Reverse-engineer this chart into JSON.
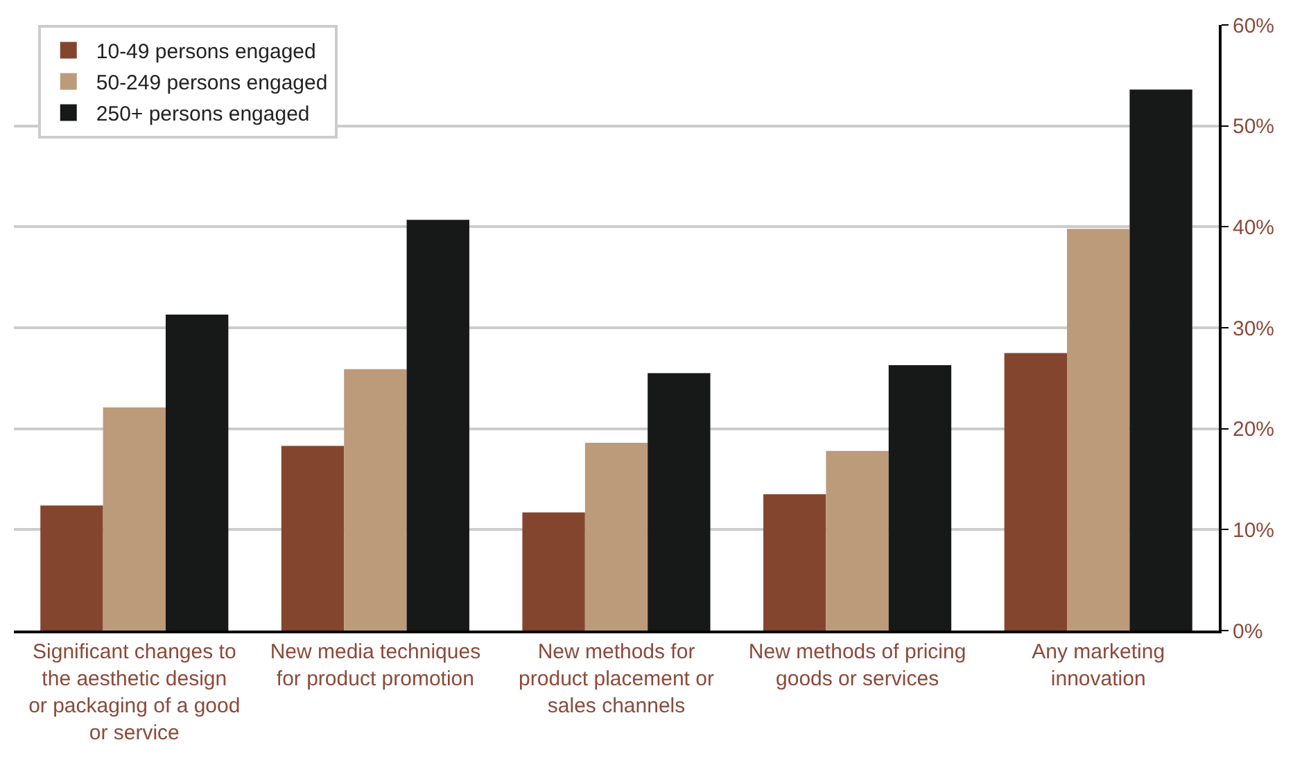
{
  "chart_data": {
    "type": "bar",
    "categories": [
      "Significant changes to the aesthetic design or packaging of a good or service",
      "New media techniques for product promotion",
      "New methods for product placement or sales channels",
      "New methods of pricing goods or services",
      "Any marketing innovation"
    ],
    "series": [
      {
        "name": "10-49 persons engaged",
        "color": "#84452f",
        "values": [
          12.4,
          18.3,
          11.7,
          13.5,
          27.5
        ]
      },
      {
        "name": "50-249 persons engaged",
        "color": "#bc9b7b",
        "values": [
          22.1,
          25.9,
          18.6,
          17.8,
          39.8
        ]
      },
      {
        "name": "250+ persons engaged",
        "color": "#171918",
        "values": [
          31.3,
          40.7,
          25.5,
          26.3,
          53.6
        ]
      }
    ],
    "ylim": [
      0,
      60
    ],
    "yticks": [
      {
        "value": 0,
        "label": "0%"
      },
      {
        "value": 10,
        "label": "10%"
      },
      {
        "value": 20,
        "label": "20%"
      },
      {
        "value": 30,
        "label": "30%"
      },
      {
        "value": 40,
        "label": "40%"
      },
      {
        "value": 50,
        "label": "50%"
      },
      {
        "value": 60,
        "label": "60%"
      }
    ],
    "grid": "y",
    "legend": "top left"
  }
}
